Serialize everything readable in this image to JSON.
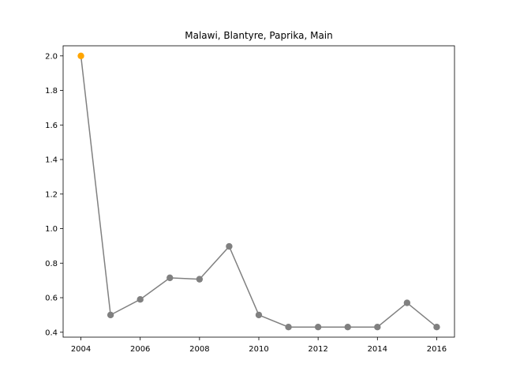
{
  "chart_data": {
    "type": "line",
    "title": "Malawi, Blantyre, Paprika, Main",
    "xlabel": "",
    "ylabel": "",
    "x": [
      2004,
      2005,
      2006,
      2007,
      2008,
      2009,
      2010,
      2011,
      2012,
      2013,
      2014,
      2015,
      2016
    ],
    "y": [
      2.0,
      0.5,
      0.59,
      0.715,
      0.707,
      0.897,
      0.5,
      0.43,
      0.43,
      0.43,
      0.43,
      0.57,
      0.43
    ],
    "x_ticks": [
      "2004",
      "2006",
      "2008",
      "2010",
      "2012",
      "2014",
      "2016"
    ],
    "y_ticks": [
      "0.4",
      "0.6",
      "0.8",
      "1.0",
      "1.2",
      "1.4",
      "1.6",
      "1.8",
      "2.0"
    ],
    "xlim": [
      2003.4,
      2016.6
    ],
    "ylim": [
      0.3715,
      2.0585
    ],
    "grid": false,
    "line_color": "#808080",
    "marker_color": "#808080",
    "highlight_index": 0,
    "highlight_color": "#ffa500"
  }
}
